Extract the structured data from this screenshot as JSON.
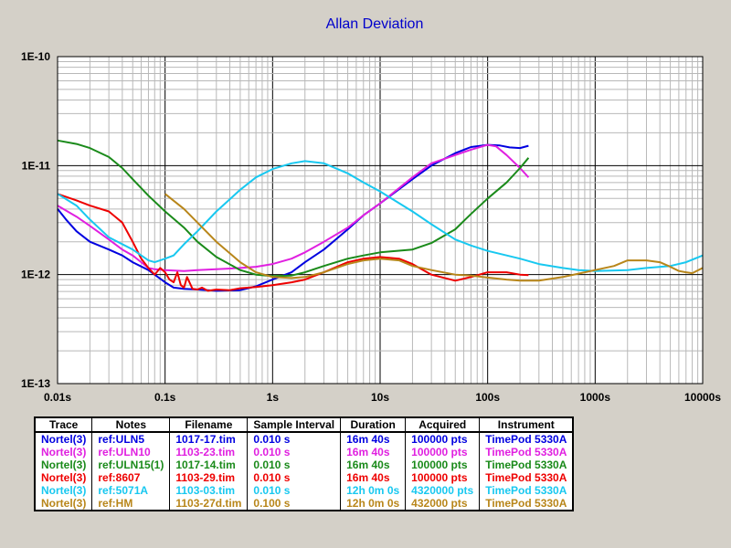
{
  "chart_data": {
    "type": "line",
    "title": "Allan Deviation",
    "x_scale": "log",
    "y_scale": "log",
    "xlim": [
      0.01,
      10000
    ],
    "ylim": [
      1e-13,
      1e-10
    ],
    "x_tick_labels": [
      "0.01s",
      "0.1s",
      "1s",
      "10s",
      "100s",
      "1000s",
      "10000s"
    ],
    "y_tick_labels": [
      "1E-10",
      "1E-11",
      "1E-12",
      "1E-13"
    ],
    "grid": true,
    "series": [
      {
        "name": "ref:ULN5",
        "color": "#0000e0",
        "x": [
          0.01,
          0.012,
          0.015,
          0.02,
          0.03,
          0.04,
          0.05,
          0.07,
          0.1,
          0.12,
          0.15,
          0.2,
          0.3,
          0.5,
          0.7,
          1,
          1.5,
          2,
          3,
          5,
          7,
          10,
          20,
          30,
          50,
          70,
          100,
          130,
          160,
          200,
          240
        ],
        "y": [
          4e-12,
          3.2e-12,
          2.5e-12,
          2e-12,
          1.7e-12,
          1.5e-12,
          1.3e-12,
          1.1e-12,
          8.5e-13,
          7.6e-13,
          7.4e-13,
          7.3e-13,
          7.1e-13,
          7.2e-13,
          7.8e-13,
          9e-13,
          1.05e-12,
          1.3e-12,
          1.7e-12,
          2.6e-12,
          3.5e-12,
          4.5e-12,
          7.5e-12,
          1e-11,
          1.3e-11,
          1.48e-11,
          1.55e-11,
          1.53e-11,
          1.47e-11,
          1.45e-11,
          1.52e-11
        ]
      },
      {
        "name": "ref:ULN10",
        "color": "#e020e0",
        "x": [
          0.01,
          0.015,
          0.02,
          0.03,
          0.04,
          0.05,
          0.06,
          0.07,
          0.08,
          0.1,
          0.15,
          0.2,
          0.3,
          0.5,
          0.7,
          1,
          1.5,
          2,
          3,
          5,
          7,
          10,
          20,
          30,
          50,
          70,
          100,
          120,
          150,
          200,
          240
        ],
        "y": [
          4.3e-12,
          3.4e-12,
          2.8e-12,
          2.1e-12,
          1.7e-12,
          1.5e-12,
          1.3e-12,
          1.15e-12,
          1.12e-12,
          1.1e-12,
          1.08e-12,
          1.1e-12,
          1.12e-12,
          1.15e-12,
          1.18e-12,
          1.25e-12,
          1.4e-12,
          1.6e-12,
          2e-12,
          2.7e-12,
          3.5e-12,
          4.5e-12,
          7.8e-12,
          1.05e-11,
          1.25e-11,
          1.4e-11,
          1.55e-11,
          1.5e-11,
          1.25e-11,
          9.5e-12,
          7.8e-12
        ]
      },
      {
        "name": "ref:ULN15(1)",
        "color": "#1a8a1a",
        "x": [
          0.01,
          0.015,
          0.02,
          0.03,
          0.04,
          0.05,
          0.07,
          0.1,
          0.15,
          0.2,
          0.3,
          0.5,
          0.7,
          1,
          1.5,
          2,
          3,
          5,
          7,
          10,
          20,
          30,
          50,
          70,
          100,
          150,
          200,
          240
        ],
        "y": [
          1.7e-11,
          1.58e-11,
          1.45e-11,
          1.2e-11,
          9.5e-12,
          7.5e-12,
          5.3e-12,
          3.8e-12,
          2.7e-12,
          2e-12,
          1.45e-12,
          1.1e-12,
          1e-12,
          9.7e-13,
          9.8e-13,
          1.05e-12,
          1.2e-12,
          1.4e-12,
          1.5e-12,
          1.6e-12,
          1.7e-12,
          1.95e-12,
          2.6e-12,
          3.6e-12,
          5e-12,
          7e-12,
          9.5e-12,
          1.18e-11
        ]
      },
      {
        "name": "ref:8607",
        "color": "#ee0000",
        "x": [
          0.01,
          0.015,
          0.02,
          0.03,
          0.04,
          0.05,
          0.06,
          0.07,
          0.08,
          0.09,
          0.1,
          0.11,
          0.12,
          0.13,
          0.14,
          0.15,
          0.16,
          0.18,
          0.2,
          0.22,
          0.25,
          0.3,
          0.4,
          0.5,
          0.7,
          1,
          1.5,
          2,
          3,
          5,
          7,
          10,
          15,
          20,
          30,
          50,
          70,
          100,
          150,
          200,
          240
        ],
        "y": [
          5.5e-12,
          4.8e-12,
          4.3e-12,
          3.8e-12,
          3e-12,
          2e-12,
          1.4e-12,
          1.15e-12,
          1e-12,
          1.15e-12,
          1.05e-12,
          9e-13,
          8.5e-13,
          1.05e-12,
          8e-13,
          7.6e-13,
          9.5e-13,
          7.4e-13,
          7.3e-13,
          7.6e-13,
          7.1e-13,
          7.3e-13,
          7.2e-13,
          7.5e-13,
          7.7e-13,
          8e-13,
          8.5e-13,
          9e-13,
          1.05e-12,
          1.3e-12,
          1.4e-12,
          1.45e-12,
          1.4e-12,
          1.25e-12,
          1e-12,
          8.8e-13,
          9.5e-13,
          1.05e-12,
          1.05e-12,
          1e-12,
          9.9e-13
        ]
      },
      {
        "name": "ref:5071A",
        "color": "#18c8f0",
        "x": [
          0.01,
          0.015,
          0.02,
          0.03,
          0.05,
          0.07,
          0.08,
          0.1,
          0.12,
          0.15,
          0.2,
          0.3,
          0.5,
          0.7,
          1,
          1.5,
          2,
          3,
          5,
          7,
          10,
          20,
          30,
          50,
          70,
          100,
          200,
          300,
          500,
          700,
          1000,
          2000,
          3000,
          5000,
          7000,
          10000
        ],
        "y": [
          5.5e-12,
          4.3e-12,
          3.2e-12,
          2.2e-12,
          1.7e-12,
          1.35e-12,
          1.3e-12,
          1.4e-12,
          1.5e-12,
          1.9e-12,
          2.5e-12,
          3.8e-12,
          6e-12,
          7.8e-12,
          9.3e-12,
          1.05e-11,
          1.1e-11,
          1.05e-11,
          8.5e-12,
          7e-12,
          5.8e-12,
          3.8e-12,
          2.9e-12,
          2.1e-12,
          1.85e-12,
          1.65e-12,
          1.4e-12,
          1.25e-12,
          1.15e-12,
          1.1e-12,
          1.08e-12,
          1.1e-12,
          1.15e-12,
          1.2e-12,
          1.3e-12,
          1.5e-12
        ]
      },
      {
        "name": "ref:HM",
        "color": "#b8861a",
        "x": [
          0.1,
          0.15,
          0.2,
          0.3,
          0.5,
          0.7,
          1,
          1.5,
          2,
          3,
          5,
          7,
          10,
          15,
          20,
          30,
          50,
          70,
          100,
          150,
          200,
          300,
          500,
          700,
          1000,
          1500,
          2000,
          3000,
          4000,
          5000,
          6000,
          7000,
          8000,
          10000
        ],
        "y": [
          5.5e-12,
          4e-12,
          3e-12,
          2e-12,
          1.3e-12,
          1.05e-12,
          9.5e-13,
          9.3e-13,
          9.5e-13,
          1.05e-12,
          1.25e-12,
          1.35e-12,
          1.4e-12,
          1.35e-12,
          1.2e-12,
          1.1e-12,
          1e-12,
          9.8e-13,
          9.4e-13,
          9e-13,
          8.8e-13,
          8.8e-13,
          9.5e-13,
          1.02e-12,
          1.1e-12,
          1.2e-12,
          1.35e-12,
          1.35e-12,
          1.3e-12,
          1.18e-12,
          1.08e-12,
          1.05e-12,
          1.03e-12,
          1.15e-12
        ]
      }
    ]
  },
  "table": {
    "headers": [
      "Trace",
      "Notes",
      "Filename",
      "Sample Interval",
      "Duration",
      "Acquired",
      "Instrument"
    ],
    "rows": [
      {
        "color": "#0000e0",
        "cells": [
          "Nortel(3)",
          "ref:ULN5",
          "1017-17.tim",
          "0.010 s",
          "16m 40s",
          "100000 pts",
          "TimePod 5330A"
        ]
      },
      {
        "color": "#e020e0",
        "cells": [
          "Nortel(3)",
          "ref:ULN10",
          "1103-23.tim",
          "0.010 s",
          "16m 40s",
          "100000 pts",
          "TimePod 5330A"
        ]
      },
      {
        "color": "#1a8a1a",
        "cells": [
          "Nortel(3)",
          "ref:ULN15(1)",
          "1017-14.tim",
          "0.010 s",
          "16m 40s",
          "100000 pts",
          "TimePod 5330A"
        ]
      },
      {
        "color": "#ee0000",
        "cells": [
          "Nortel(3)",
          "ref:8607",
          "1103-29.tim",
          "0.010 s",
          "16m 40s",
          "100000 pts",
          "TimePod 5330A"
        ]
      },
      {
        "color": "#18c8f0",
        "cells": [
          "Nortel(3)",
          "ref:5071A",
          "1103-03.tim",
          "0.010 s",
          "12h 0m 0s",
          "4320000 pts",
          "TimePod 5330A"
        ]
      },
      {
        "color": "#b8861a",
        "cells": [
          "Nortel(3)",
          "ref:HM",
          "1103-27d.tim",
          "0.100 s",
          "12h 0m 0s",
          "432000 pts",
          "TimePod 5330A"
        ]
      }
    ]
  }
}
